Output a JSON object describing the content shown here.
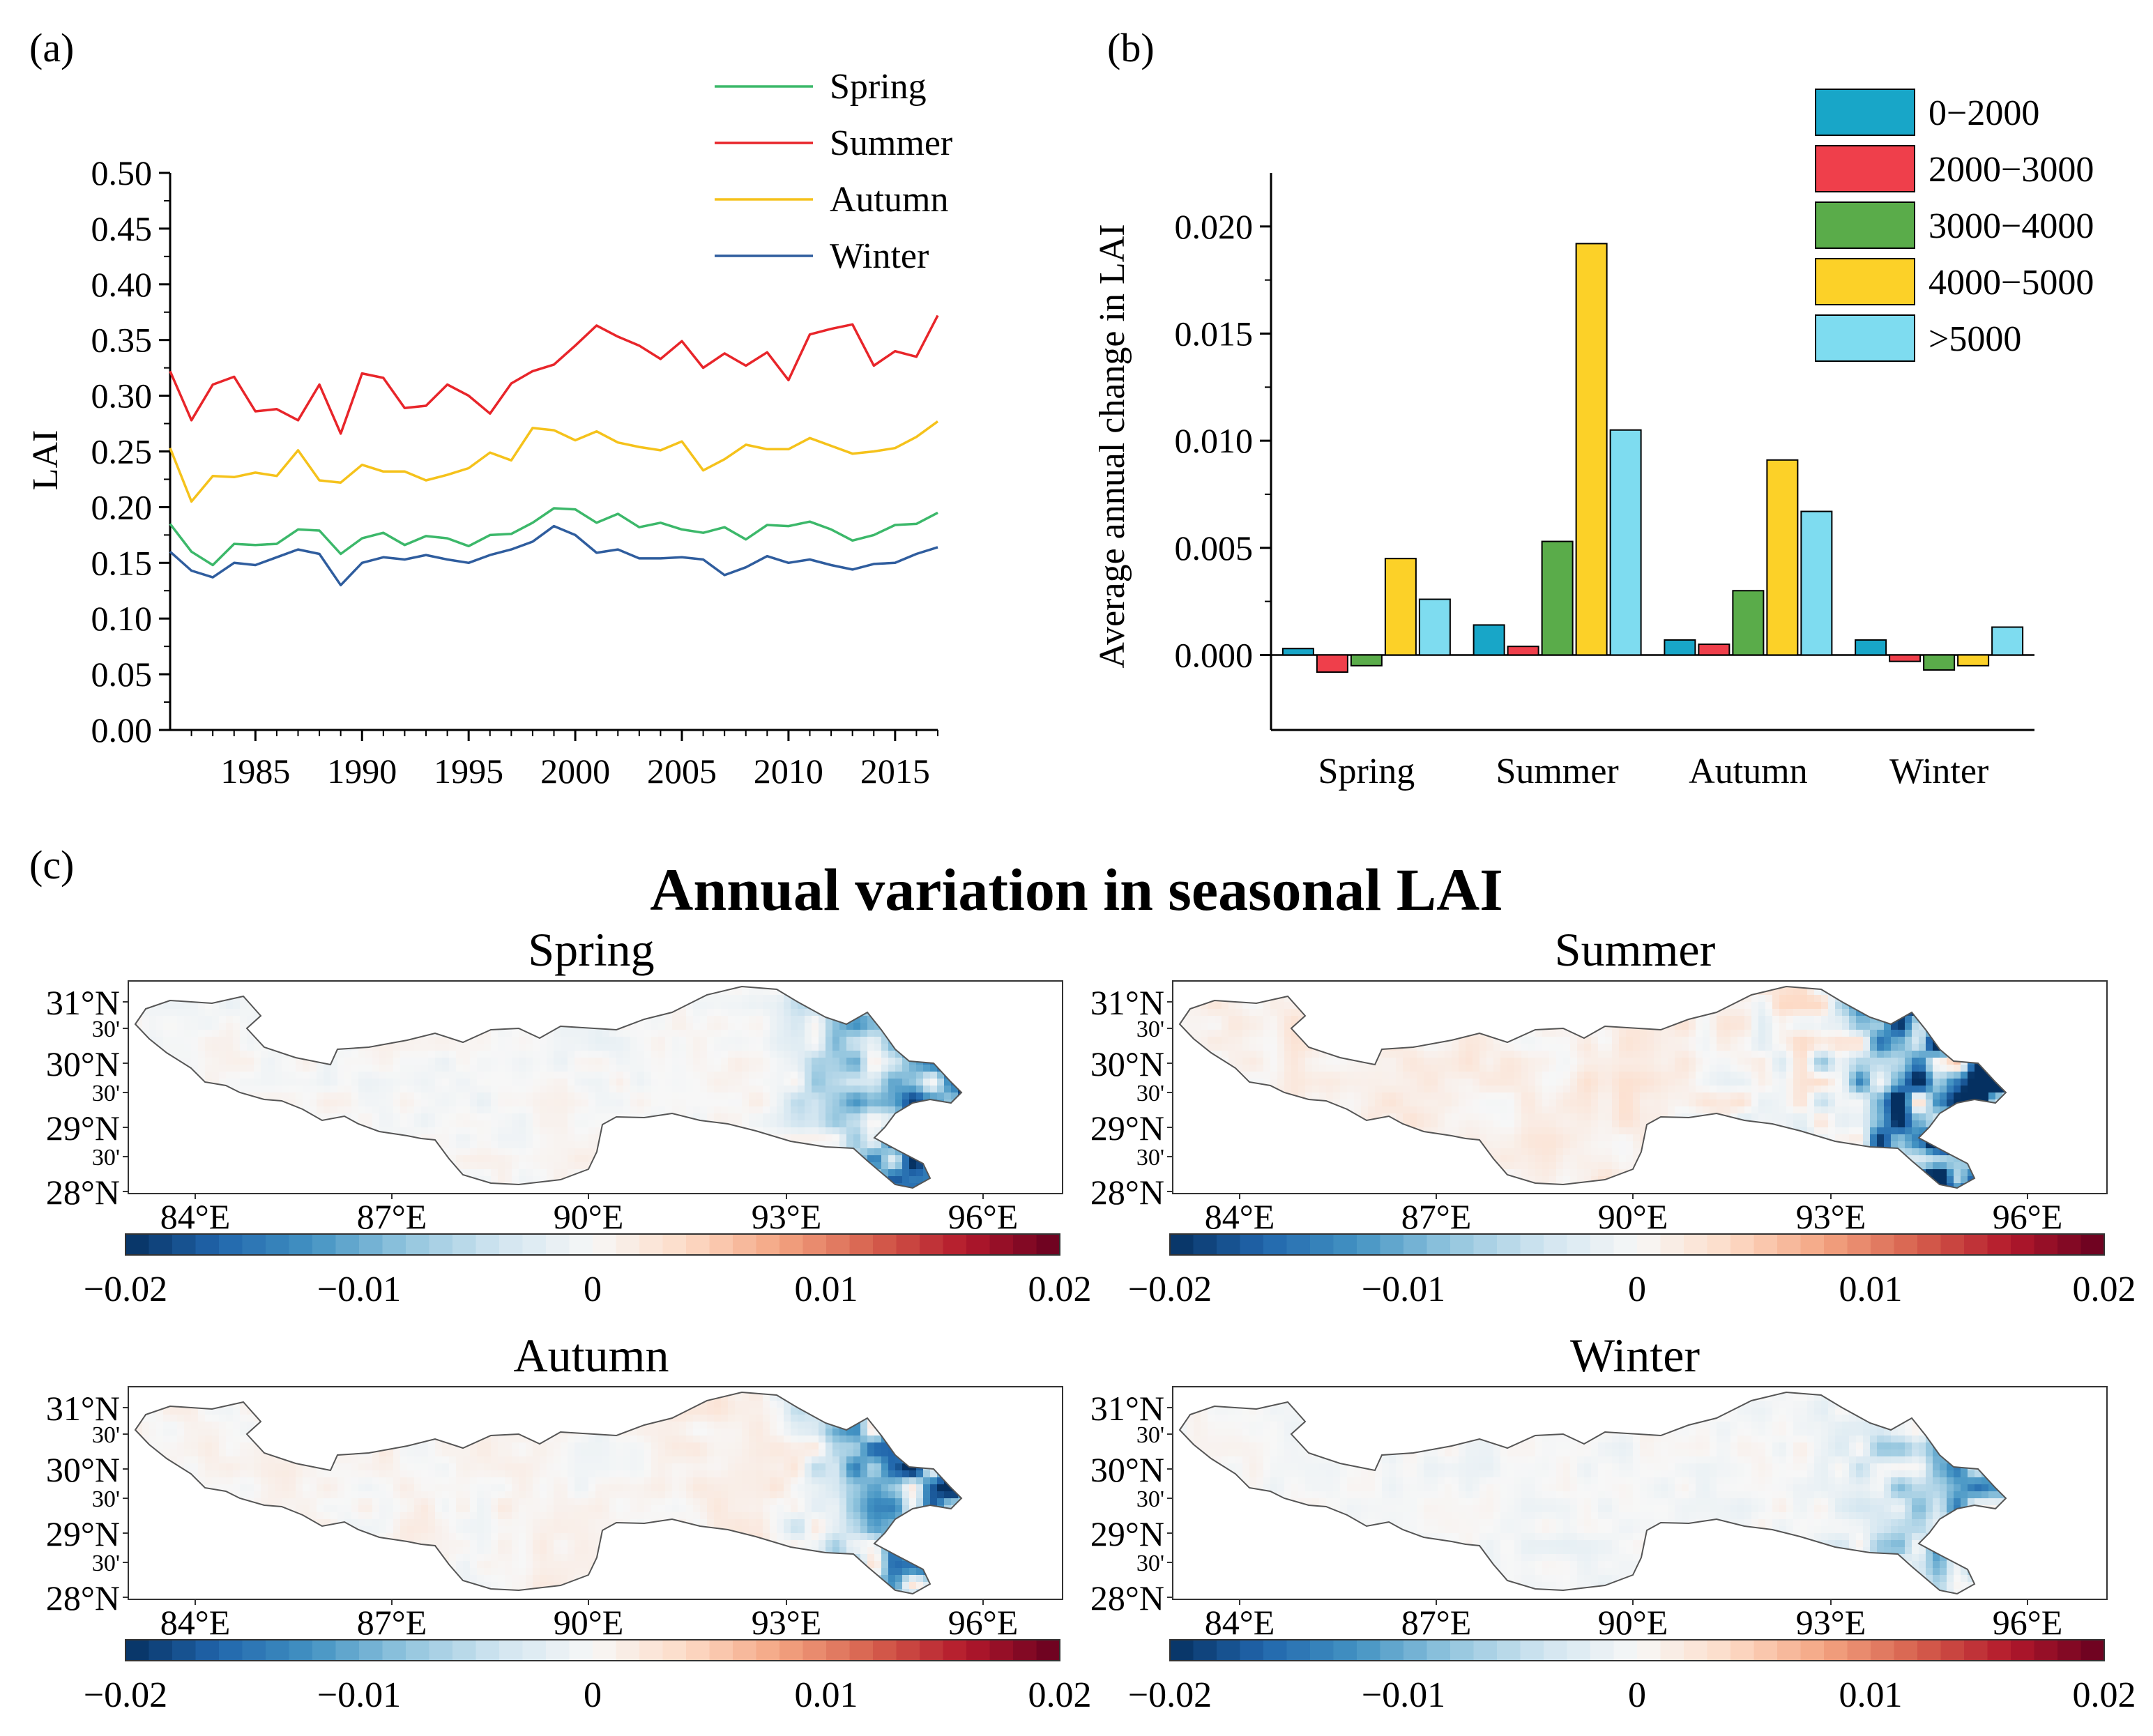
{
  "panel_labels": {
    "a": "(a)",
    "b": "(b)",
    "c": "(c)"
  },
  "chart_data": [
    {
      "type": "line",
      "panel": "(a)",
      "title": "",
      "xlabel": "",
      "ylabel": "LAI",
      "xlim": [
        1981,
        2017
      ],
      "ylim": [
        0,
        0.5
      ],
      "xticks": [
        1985,
        1990,
        1995,
        2000,
        2005,
        2010,
        2015
      ],
      "yticks": [
        0.0,
        0.05,
        0.1,
        0.15,
        0.2,
        0.25,
        0.3,
        0.35,
        0.4,
        0.45,
        0.5
      ],
      "yticks_labels": [
        "0.00",
        "0.05",
        "0.10",
        "0.15",
        "0.20",
        "0.25",
        "0.30",
        "0.35",
        "0.40",
        "0.45",
        "0.50"
      ],
      "xticks_labels": [
        "1985",
        "1990",
        "1995",
        "2000",
        "2005",
        "2010",
        "2015"
      ],
      "legend_position": "top-right",
      "x": [
        1981,
        1982,
        1983,
        1984,
        1985,
        1986,
        1987,
        1988,
        1989,
        1990,
        1991,
        1992,
        1993,
        1994,
        1995,
        1996,
        1997,
        1998,
        1999,
        2000,
        2001,
        2002,
        2003,
        2004,
        2005,
        2006,
        2007,
        2008,
        2009,
        2010,
        2011,
        2012,
        2013,
        2014,
        2015,
        2016,
        2017
      ],
      "series": [
        {
          "name": "Spring",
          "color": "#3cb86a",
          "values": [
            0.185,
            0.16,
            0.148,
            0.167,
            0.166,
            0.167,
            0.18,
            0.179,
            0.158,
            0.172,
            0.177,
            0.166,
            0.174,
            0.172,
            0.165,
            0.175,
            0.176,
            0.186,
            0.199,
            0.198,
            0.186,
            0.194,
            0.182,
            0.186,
            0.18,
            0.177,
            0.182,
            0.171,
            0.184,
            0.183,
            0.187,
            0.18,
            0.17,
            0.175,
            0.184,
            0.185,
            0.195
          ]
        },
        {
          "name": "Summer",
          "color": "#e8252a",
          "values": [
            0.322,
            0.278,
            0.31,
            0.317,
            0.286,
            0.288,
            0.278,
            0.31,
            0.266,
            0.32,
            0.316,
            0.289,
            0.291,
            0.31,
            0.3,
            0.284,
            0.311,
            0.322,
            0.328,
            0.345,
            0.363,
            0.353,
            0.345,
            0.333,
            0.349,
            0.325,
            0.338,
            0.327,
            0.339,
            0.314,
            0.355,
            0.36,
            0.364,
            0.327,
            0.34,
            0.335,
            0.372
          ]
        },
        {
          "name": "Autumn",
          "color": "#f5c21b",
          "values": [
            0.253,
            0.205,
            0.228,
            0.227,
            0.231,
            0.228,
            0.251,
            0.224,
            0.222,
            0.238,
            0.232,
            0.232,
            0.224,
            0.229,
            0.235,
            0.249,
            0.242,
            0.271,
            0.269,
            0.26,
            0.268,
            0.258,
            0.254,
            0.251,
            0.259,
            0.233,
            0.243,
            0.256,
            0.252,
            0.252,
            0.262,
            0.255,
            0.248,
            0.25,
            0.253,
            0.263,
            0.277
          ]
        },
        {
          "name": "Winter",
          "color": "#2f5d9e",
          "values": [
            0.16,
            0.143,
            0.137,
            0.15,
            0.148,
            0.155,
            0.162,
            0.158,
            0.13,
            0.15,
            0.155,
            0.153,
            0.157,
            0.153,
            0.15,
            0.157,
            0.162,
            0.169,
            0.183,
            0.175,
            0.159,
            0.162,
            0.154,
            0.154,
            0.155,
            0.153,
            0.139,
            0.146,
            0.156,
            0.15,
            0.153,
            0.148,
            0.144,
            0.149,
            0.15,
            0.158,
            0.164
          ]
        }
      ]
    },
    {
      "type": "bar",
      "panel": "(b)",
      "title": "",
      "xlabel": "",
      "ylabel": "Average annual change in LAI",
      "ylim": [
        -0.0035,
        0.0225
      ],
      "yticks": [
        0.0,
        0.005,
        0.01,
        0.015,
        0.02
      ],
      "yticks_labels": [
        "0.000",
        "0.005",
        "0.010",
        "0.015",
        "0.020"
      ],
      "categories": [
        "Spring",
        "Summer",
        "Autumn",
        "Winter"
      ],
      "legend_position": "top-right",
      "series": [
        {
          "name": "0-2000",
          "legend_label": "0−2000",
          "color": "#18a6c8",
          "values": [
            0.0003,
            0.0014,
            0.0007,
            0.0007
          ]
        },
        {
          "name": "2000-3000",
          "legend_label": "2000−3000",
          "color": "#ef3f4b",
          "values": [
            -0.0008,
            0.0004,
            0.0005,
            -0.0003
          ]
        },
        {
          "name": "3000-4000",
          "legend_label": "3000−4000",
          "color": "#5aac4a",
          "values": [
            -0.0005,
            0.0053,
            0.003,
            -0.0007
          ]
        },
        {
          "name": "4000-5000",
          "legend_label": "4000−5000",
          "color": "#fcd128",
          "values": [
            0.0045,
            0.0192,
            0.0091,
            -0.0005
          ]
        },
        {
          "name": ">5000",
          "legend_label": ">5000",
          "color": "#7edcf0",
          "values": [
            0.0026,
            0.0105,
            0.0067,
            0.0013
          ]
        }
      ]
    },
    {
      "type": "heatmap",
      "panel": "(c)",
      "title": "Annual variation in seasonal LAI",
      "colorbar_range": [
        -0.02,
        0.02
      ],
      "colorbar_ticks": [
        "−0.02",
        "−0.01",
        "0",
        "0.01",
        "0.02"
      ],
      "colorbar_colors": [
        "#053061",
        "#2166ac",
        "#4393c3",
        "#92c5de",
        "#d1e5f0",
        "#f7f7f7",
        "#fddbc7",
        "#f4a582",
        "#d6604d",
        "#b2182b",
        "#67001f"
      ],
      "lon_ticks": [
        "84°E",
        "87°E",
        "90°E",
        "93°E",
        "96°E"
      ],
      "lat_ticks": [
        "31°N",
        "30'",
        "30°N",
        "30'",
        "29°N",
        "30'",
        "28°N"
      ],
      "maps": [
        {
          "season": "Spring",
          "anomaly_strength": 0.9
        },
        {
          "season": "Summer",
          "anomaly_strength": 1.0
        },
        {
          "season": "Autumn",
          "anomaly_strength": 0.95
        },
        {
          "season": "Winter",
          "anomaly_strength": 0.7
        }
      ]
    }
  ]
}
